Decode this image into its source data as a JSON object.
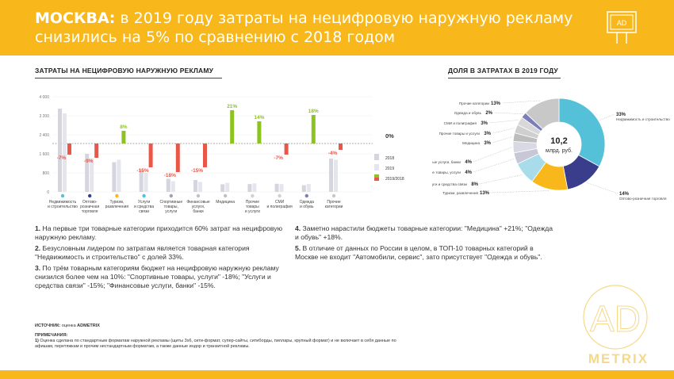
{
  "header": {
    "title_bold": "МОСКВА:",
    "title_rest": " в 2019 году затраты на нецифровую наружную рекламу снизились на 5% по сравнению с 2018 годом",
    "logo_text": "AD"
  },
  "left_section": {
    "title": "ЗАТРАТЫ НА НЕЦИФРОВУЮ НАРУЖНУЮ РЕКЛАМУ"
  },
  "right_section": {
    "title": "ДОЛЯ В ЗАТРАТАХ В 2019 ГОДУ"
  },
  "colors": {
    "accent": "#f8b81c",
    "green": "#8dc31f",
    "red": "#e95749",
    "bar2018": "#d5d5e0",
    "bar2019": "#e5e5ee"
  },
  "chart_data": [
    {
      "type": "bar",
      "yticks": [
        "4 000",
        "3 200",
        "2 400",
        "1 600",
        "800",
        "0"
      ],
      "ylim": [
        0,
        4000
      ],
      "categories": [
        {
          "label": [
            "Недвижимость",
            "и строительство"
          ],
          "icon_color": "#55c1d9",
          "v2018": 3500,
          "v2019": 3300,
          "change": "-7%"
        },
        {
          "label": [
            "Оптово-",
            "розничная",
            "торговля"
          ],
          "icon_color": "#3a3d8c",
          "v2018": 1600,
          "v2019": 1400,
          "change": "-9%"
        },
        {
          "label": [
            "Туризм,",
            "развлечения"
          ],
          "icon_color": "#f8b81c",
          "v2018": 1250,
          "v2019": 1350,
          "change": "8%"
        },
        {
          "label": [
            "Услуги",
            "и средства",
            "связи"
          ],
          "icon_color": "#55c1d9",
          "v2018": 950,
          "v2019": 800,
          "change": "-15%"
        },
        {
          "label": [
            "Спортивные",
            "товары,",
            "услуги"
          ],
          "icon_color": "#a0a0b8",
          "v2018": 550,
          "v2019": 450,
          "change": "-18%"
        },
        {
          "label": [
            "Финансовые",
            "услуги,",
            "банки"
          ],
          "icon_color": "#c0c0d0",
          "v2018": 500,
          "v2019": 420,
          "change": "-15%"
        },
        {
          "label": [
            "Медицина"
          ],
          "icon_color": "#c0c0c0",
          "v2018": 320,
          "v2019": 380,
          "change": "21%"
        },
        {
          "label": [
            "Прочие",
            "товары",
            "и услуги"
          ],
          "icon_color": "#d0d0d0",
          "v2018": 330,
          "v2019": 360,
          "change": "14%"
        },
        {
          "label": [
            "СМИ",
            "и полиграфия"
          ],
          "icon_color": "#d0d0d0",
          "v2018": 340,
          "v2019": 330,
          "change": "-7%"
        },
        {
          "label": [
            "Одежда",
            "и обувь"
          ],
          "icon_color": "#7b7eb8",
          "v2018": 280,
          "v2019": 330,
          "change": "18%"
        },
        {
          "label": [
            "Прочие",
            "категории"
          ],
          "icon_color": "#c8c8c8",
          "v2018": 1400,
          "v2019": 1350,
          "change": "-4%"
        }
      ],
      "zero_label": "0%",
      "legend": [
        "2018",
        "2019",
        "2019/2018"
      ]
    },
    {
      "type": "pie",
      "center_value": "10,2",
      "center_unit": "млрд. руб.",
      "slices": [
        {
          "label": "Недвижимость и строительство",
          "value": 33,
          "text": "33%",
          "color": "#55c1d9"
        },
        {
          "label": "Оптово-розничная торговля",
          "value": 14,
          "text": "14%",
          "color": "#3a3d8c"
        },
        {
          "label": "Туризм, развлечения",
          "value": 13,
          "text": "13%",
          "color": "#f8b81c"
        },
        {
          "label": "Услуги и средства связи",
          "value": 8,
          "text": "8%",
          "color": "#a9dceb"
        },
        {
          "label": "Спортивные товары, услуги",
          "value": 4,
          "text": "4%",
          "color": "#c7c7d6"
        },
        {
          "label": "Финансовые услуги, банки",
          "value": 4,
          "text": "4%",
          "color": "#d9d9e3"
        },
        {
          "label": "Медицина",
          "value": 3,
          "text": "3%",
          "color": "#bdbdbd"
        },
        {
          "label": "Прочие товары и услуги",
          "value": 3,
          "text": "3%",
          "color": "#cfcfcf"
        },
        {
          "label": "СМИ и полиграфия",
          "value": 3,
          "text": "3%",
          "color": "#d8d8d8"
        },
        {
          "label": "Одежда и обувь",
          "value": 2,
          "text": "2%",
          "color": "#7b7eb8"
        },
        {
          "label": "Прочие категории",
          "value": 13,
          "text": "13%",
          "color": "#c8c8c8"
        }
      ]
    }
  ],
  "notes_left": [
    {
      "num": "1.",
      "text": " На первые три товарные категории приходится 60% затрат на нецифровую наружную рекламу."
    },
    {
      "num": "2.",
      "text": " Безусловным лидером по затратам является товарная категория \"Недвижимость и строительство\" с долей 33%."
    },
    {
      "num": "3.",
      "text": " По трём товарным категориям бюджет на нецифровую наружную рекламу снизился более чем на 10%: \"Спортивные товары, услуги\" -18%; \"Услуги и средства связи\" -15%; \"Финансовые услуги, банки\" -15%."
    }
  ],
  "notes_right": [
    {
      "num": "4.",
      "text": " Заметно нарастили бюджеты товарные категории: \"Медицина\" +21%; \"Одежда и обувь\" +18%."
    },
    {
      "num": "5.",
      "text": " В отличие от данных по России в целом, в ТОП-10 товарных категорий в Москве не входит \"Автомобили, сервис\", зато присутствует \"Одежда и обувь\"."
    }
  ],
  "source": {
    "label": "ИСТОЧНИК:",
    "text": " оценка ",
    "brand": "ADMETRIX",
    "notes_label": "ПРИМЕЧАНИЯ:",
    "note_num": "1)",
    "note_text": " Оценка сделана по стандартным форматам наружной рекламы (щиты 3х6, сити-формат, супер-сайты, ситиборды, пиллары, крупный формат) и не включает в себя данные по афишам, перетяжкам и прочим нестандартным форматам, а также данные индор и транзитной рекламы."
  },
  "watermark": {
    "top": "AD",
    "bottom": "METRIX"
  }
}
